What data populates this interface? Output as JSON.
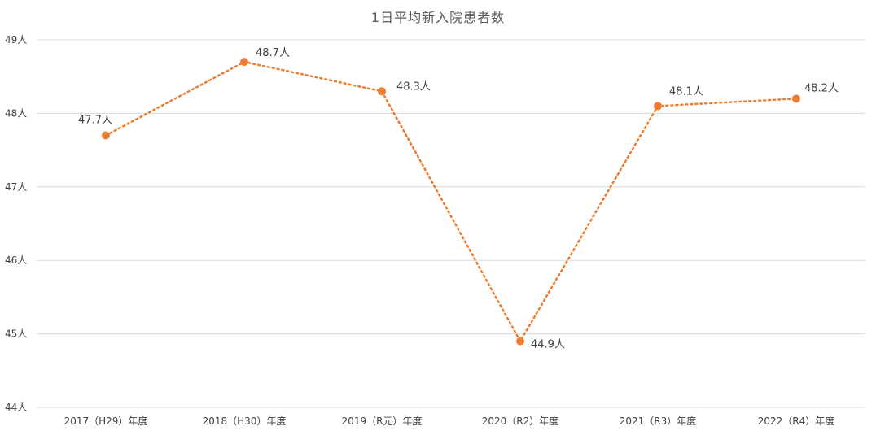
{
  "chart_data": {
    "type": "line",
    "title": "1日平均新入院患者数",
    "categories": [
      "2017（H29）年度",
      "2018（H30）年度",
      "2019（R元）年度",
      "2020（R2）年度",
      "2021（R3）年度",
      "2022（R4）年度"
    ],
    "series": [
      {
        "values": [
          47.7,
          48.7,
          48.3,
          44.9,
          48.1,
          48.2
        ],
        "data_labels": [
          "47.7人",
          "48.7人",
          "48.3人",
          "44.9人",
          "48.1人",
          "48.2人"
        ],
        "line_style": "dotted",
        "marker": "circle"
      }
    ],
    "ylim": [
      44,
      49
    ],
    "yticks": [
      44,
      45,
      46,
      47,
      48,
      49
    ],
    "ytick_labels": [
      "44人",
      "45人",
      "46人",
      "47人",
      "48人",
      "49人"
    ],
    "xlabel": "",
    "ylabel": "",
    "grid": "horizontal",
    "legend": "none",
    "colors": {
      "series": "#ED7D31",
      "grid": "#D9D9D9",
      "text": "#404040"
    }
  }
}
